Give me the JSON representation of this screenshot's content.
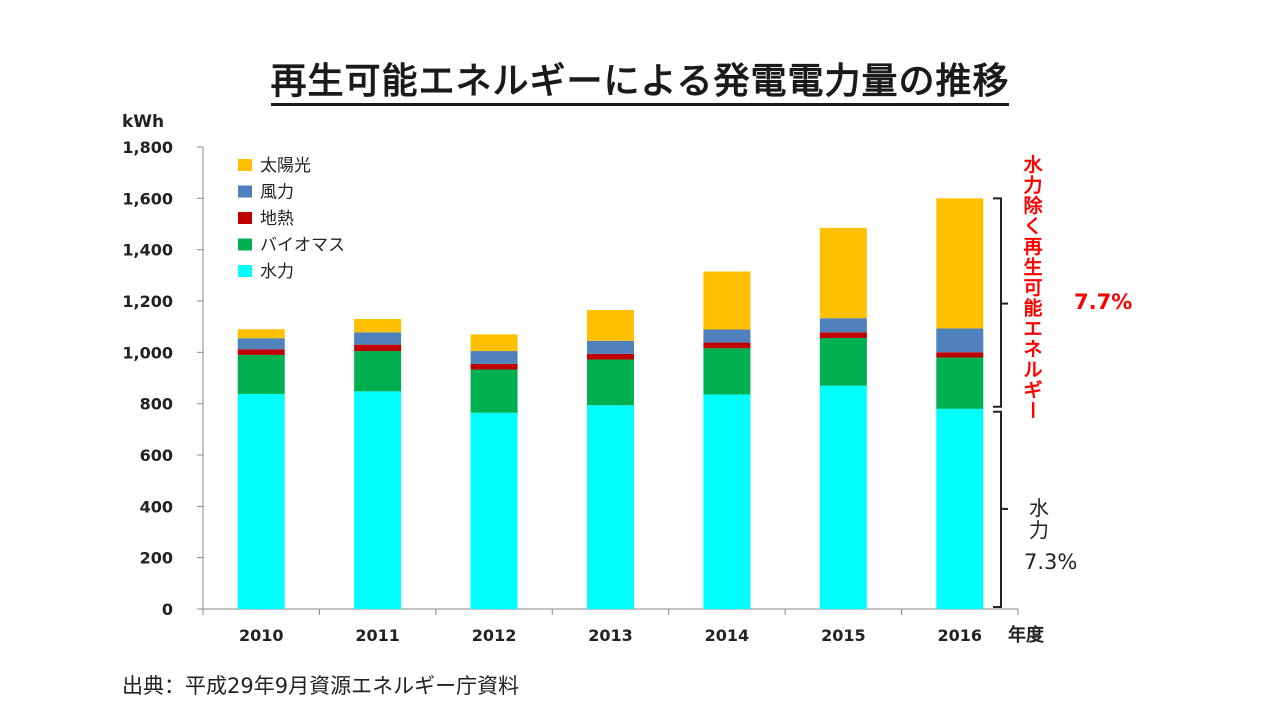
{
  "title": "再生可能エネルギーによる発電電力量の推移",
  "source": "出典：平成29年9月資源エネルギー庁資料",
  "chart_data": {
    "type": "bar",
    "stacked": true,
    "categories": [
      "2010",
      "2011",
      "2012",
      "2013",
      "2014",
      "2015",
      "2016"
    ],
    "xlabel": "年度",
    "ylabel": "kWh",
    "ylim": [
      0,
      1800
    ],
    "yticks": [
      "0",
      "200",
      "400",
      "600",
      "800",
      "1,000",
      "1,200",
      "1,400",
      "1,600",
      "1,800"
    ],
    "grid": false,
    "legend_position": "top-left",
    "series": [
      {
        "name": "水力",
        "color": "#00FFFF",
        "values": [
          838,
          848,
          765,
          794,
          836,
          870,
          780
        ]
      },
      {
        "name": "バイオマス",
        "color": "#00B050",
        "values": [
          152,
          157,
          168,
          178,
          180,
          186,
          200
        ]
      },
      {
        "name": "地熱",
        "color": "#C00000",
        "values": [
          22,
          25,
          22,
          22,
          22,
          22,
          20
        ]
      },
      {
        "name": "風力",
        "color": "#4F81BD",
        "values": [
          43,
          48,
          50,
          51,
          51,
          55,
          93
        ]
      },
      {
        "name": "太陽光",
        "color": "#FFC000",
        "values": [
          35,
          52,
          65,
          120,
          226,
          352,
          507
        ]
      }
    ],
    "annotations": {
      "renewable_excl_hydro_label": "水力除く再生可能エネルギー",
      "renewable_excl_hydro_pct": "7.7%",
      "hydro_label": "水力",
      "hydro_pct": "7.3%",
      "renewable_color": "#FF0000"
    }
  }
}
